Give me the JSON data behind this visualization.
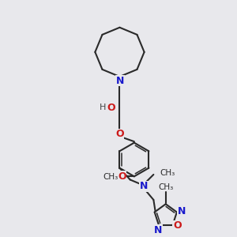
{
  "bg_color": "#e8e8ec",
  "bond_color": "#2a2a2a",
  "N_color": "#1a1acc",
  "O_color": "#cc1a1a",
  "lw": 1.5,
  "lw2": 1.1,
  "figsize": [
    3.0,
    3.0
  ],
  "dpi": 100,
  "xlim": [
    0,
    10
  ],
  "ylim": [
    0,
    10
  ]
}
